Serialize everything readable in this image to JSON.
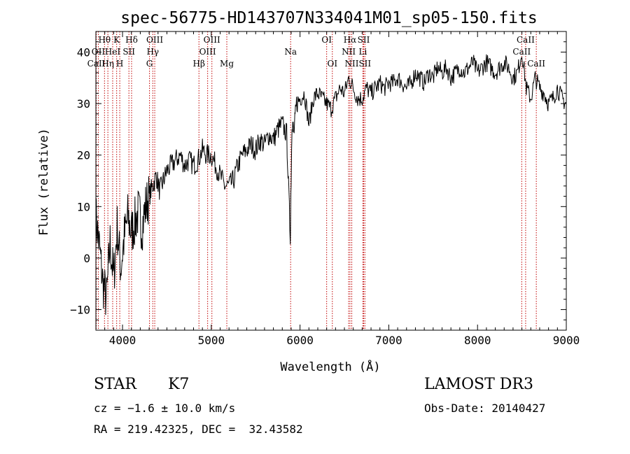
{
  "chart_data": {
    "type": "line",
    "title": "spec-56775-HD143707N334041M01_sp05-150.fits",
    "xlabel": "Wavelength (Å)",
    "ylabel": "Flux (relative)",
    "xlim": [
      3700,
      9000
    ],
    "ylim": [
      -14,
      44
    ],
    "xticks": [
      4000,
      5000,
      6000,
      7000,
      8000,
      9000
    ],
    "yticks": [
      -10,
      0,
      10,
      20,
      30,
      40
    ],
    "grid": false,
    "series": [
      {
        "x": [
          3700,
          3740,
          3780,
          3820,
          3860,
          3900,
          3940,
          3980,
          4020,
          4060,
          4100,
          4140,
          4180,
          4220,
          4260,
          4300,
          4340,
          4380,
          4420,
          4460,
          4500,
          4550,
          4600,
          4650,
          4700,
          4750,
          4800,
          4850,
          4900,
          4950,
          5000,
          5050,
          5100,
          5150,
          5200,
          5250,
          5300,
          5350,
          5400,
          5450,
          5500,
          5550,
          5600,
          5650,
          5700,
          5750,
          5800,
          5850,
          5890,
          5910,
          5930,
          5960,
          6000,
          6050,
          6100,
          6150,
          6200,
          6250,
          6300,
          6350,
          6400,
          6450,
          6500,
          6550,
          6600,
          6650,
          6700,
          6750,
          6800,
          6850,
          6900,
          6950,
          7000,
          7050,
          7100,
          7150,
          7200,
          7250,
          7300,
          7350,
          7400,
          7450,
          7500,
          7550,
          7600,
          7650,
          7700,
          7750,
          7800,
          7850,
          7900,
          7950,
          8000,
          8050,
          8100,
          8150,
          8200,
          8250,
          8300,
          8350,
          8400,
          8450,
          8500,
          8550,
          8600,
          8650,
          8700,
          8750,
          8800,
          8850,
          8900,
          8950,
          9000
        ],
        "y": [
          8,
          2,
          -5,
          -8,
          3,
          -4,
          6,
          -2,
          4,
          8,
          5,
          7,
          9,
          6,
          10,
          12,
          14,
          16,
          13,
          15,
          17,
          18,
          19,
          20,
          18,
          19,
          18,
          19,
          21,
          20,
          20,
          18,
          16,
          14,
          14,
          15,
          18,
          20,
          21,
          22,
          21,
          23,
          22,
          24,
          23,
          25,
          26,
          24,
          4,
          27,
          24,
          30,
          31,
          32,
          26,
          31,
          32,
          31,
          30,
          29,
          31,
          33,
          32,
          35,
          33,
          31,
          31,
          33,
          32,
          33,
          34,
          33,
          34,
          34,
          35,
          34,
          33,
          34,
          36,
          35,
          34,
          36,
          35,
          37,
          36,
          37,
          35,
          36,
          37,
          36,
          37,
          38,
          36,
          37,
          38,
          37,
          36,
          37,
          38,
          37,
          35,
          36,
          40,
          33,
          31,
          35,
          33,
          32,
          30,
          31,
          33,
          31,
          30
        ]
      }
    ],
    "line_labels": [
      {
        "label": "Hθ",
        "x": 3797,
        "row": 1
      },
      {
        "label": "OII",
        "x": 3727,
        "row": 2
      },
      {
        "label": "CaII",
        "x": 3704,
        "row": 3
      },
      {
        "label": "Hη",
        "x": 3835,
        "row": 3
      },
      {
        "label": "HeI",
        "x": 3889,
        "row": 2
      },
      {
        "label": "K",
        "x": 3934,
        "row": 1
      },
      {
        "label": "SII",
        "x": 4072,
        "row": 2
      },
      {
        "label": "H",
        "x": 3969,
        "row": 3
      },
      {
        "label": "Hδ",
        "x": 4102,
        "row": 1
      },
      {
        "label": "OIII",
        "x": 4363,
        "row": 1
      },
      {
        "label": "Hγ",
        "x": 4341,
        "row": 2
      },
      {
        "label": "G",
        "x": 4304,
        "row": 3
      },
      {
        "label": "Hβ",
        "x": 4861,
        "row": 3
      },
      {
        "label": "OIII",
        "x": 5007,
        "row": 1
      },
      {
        "label": "OIII",
        "x": 4959,
        "row": 2
      },
      {
        "label": "Mg",
        "x": 5175,
        "row": 3
      },
      {
        "label": "Na",
        "x": 5894,
        "row": 2
      },
      {
        "label": "OI",
        "x": 6300,
        "row": 1
      },
      {
        "label": "OI",
        "x": 6364,
        "row": 3
      },
      {
        "label": "Hα",
        "x": 6563,
        "row": 1
      },
      {
        "label": "NII",
        "x": 6548,
        "row": 2
      },
      {
        "label": "NII",
        "x": 6583,
        "row": 3
      },
      {
        "label": "SII",
        "x": 6717,
        "row": 1
      },
      {
        "label": "Li",
        "x": 6708,
        "row": 2
      },
      {
        "label": "SII",
        "x": 6731,
        "row": 3
      },
      {
        "label": "CaII",
        "x": 8542,
        "row": 1
      },
      {
        "label": "CaII",
        "x": 8498,
        "row": 2
      },
      {
        "label": "CaII",
        "x": 8662,
        "row": 3
      }
    ]
  },
  "info": {
    "object_class": "STAR",
    "subclass": "K7",
    "survey": "LAMOST DR3",
    "redshift": "cz = −1.6 ± 10.0 km/s",
    "obs_date": "Obs-Date: 20140427",
    "coords": "RA = 219.42325, DEC =  32.43582"
  },
  "colors": {
    "spectrum": "#000000",
    "line_markers": "#c00000"
  }
}
